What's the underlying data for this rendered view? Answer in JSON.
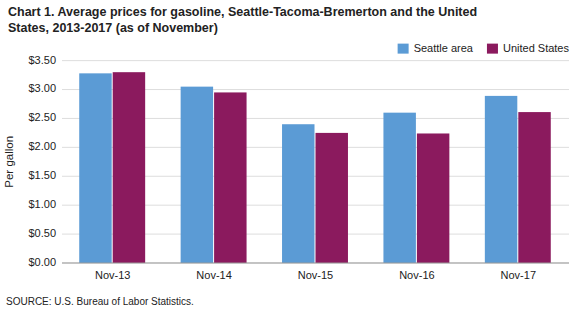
{
  "chart_data": {
    "type": "bar",
    "title": "Chart 1. Average prices for gasoline, Seattle-Tacoma-Bremerton and the United\nStates, 2013-2017  (as of November)",
    "y_label": "Per gallon",
    "annotations": [
      "SOURCE: U.S. Bureau of Labor Statistics."
    ],
    "categories": [
      "Nov-13",
      "Nov-14",
      "Nov-15",
      "Nov-16",
      "Nov-17"
    ],
    "series": [
      {
        "name": "Seattle area",
        "color": "#5B9BD5",
        "values": [
          3.28,
          3.05,
          2.4,
          2.6,
          2.89
        ]
      },
      {
        "name": "United States",
        "color": "#8B1A5E",
        "values": [
          3.3,
          2.95,
          2.25,
          2.24,
          2.61
        ]
      }
    ],
    "ylim": [
      0.0,
      3.5
    ],
    "yticks": [
      {
        "value": 0.0,
        "label": "$0.00"
      },
      {
        "value": 0.5,
        "label": "$0.50"
      },
      {
        "value": 1.0,
        "label": "$1.00"
      },
      {
        "value": 1.5,
        "label": "$1.50"
      },
      {
        "value": 2.0,
        "label": "$2.00"
      },
      {
        "value": 2.5,
        "label": "$2.50"
      },
      {
        "value": 3.0,
        "label": "$3.00"
      },
      {
        "value": 3.5,
        "label": "$3.50"
      }
    ],
    "grid": true,
    "legend": "upper right"
  }
}
